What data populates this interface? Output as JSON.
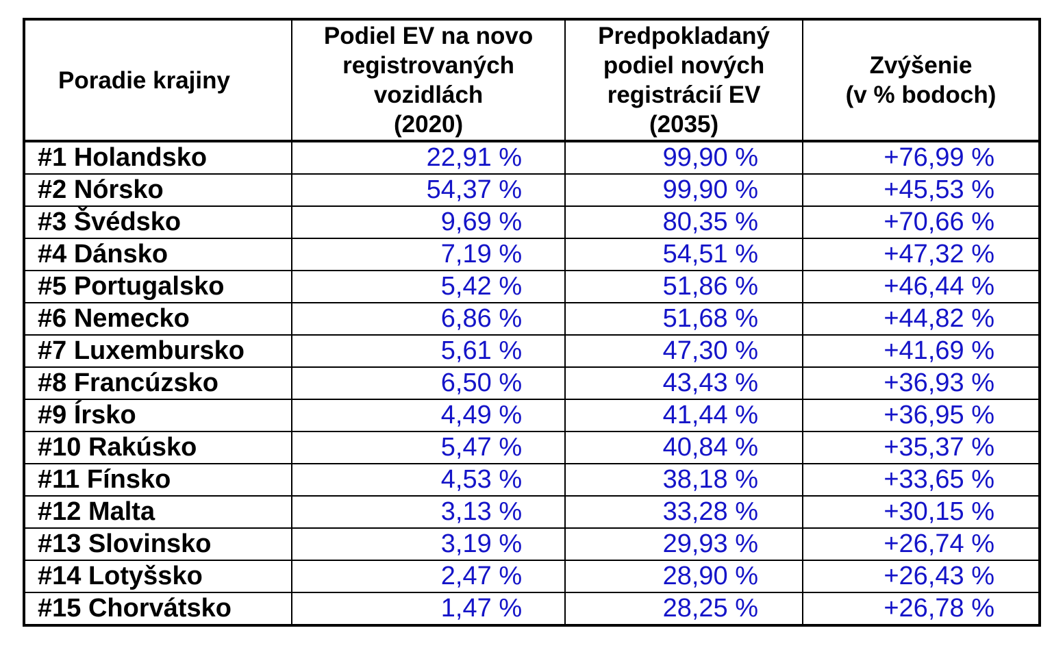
{
  "chart_data": {
    "type": "table",
    "columns": [
      {
        "key": "country",
        "lines": [
          "Poradie krajiny"
        ]
      },
      {
        "key": "share_2020",
        "lines": [
          "Podiel EV na novo",
          "registrovaných",
          "vozidlách",
          "(2020)"
        ]
      },
      {
        "key": "share_2035",
        "lines": [
          "Predpokladaný",
          "podiel nových",
          "registrácií EV",
          "(2035)"
        ]
      },
      {
        "key": "increase",
        "lines": [
          "Zvýšenie",
          "(v % bodoch)"
        ]
      }
    ],
    "rows": [
      {
        "country": "#1 Holandsko",
        "share_2020": "22,91 %",
        "share_2035": "99,90 %",
        "increase": "+76,99 %"
      },
      {
        "country": "#2 Nórsko",
        "share_2020": "54,37 %",
        "share_2035": "99,90 %",
        "increase": "+45,53 %"
      },
      {
        "country": "#3 Švédsko",
        "share_2020": "9,69 %",
        "share_2035": "80,35 %",
        "increase": "+70,66 %"
      },
      {
        "country": "#4 Dánsko",
        "share_2020": "7,19 %",
        "share_2035": "54,51 %",
        "increase": "+47,32 %"
      },
      {
        "country": "#5 Portugalsko",
        "share_2020": "5,42 %",
        "share_2035": "51,86 %",
        "increase": "+46,44 %"
      },
      {
        "country": "#6 Nemecko",
        "share_2020": "6,86 %",
        "share_2035": "51,68 %",
        "increase": "+44,82 %"
      },
      {
        "country": "#7 Luxembursko",
        "share_2020": "5,61 %",
        "share_2035": "47,30 %",
        "increase": "+41,69 %"
      },
      {
        "country": "#8 Francúzsko",
        "share_2020": "6,50 %",
        "share_2035": "43,43 %",
        "increase": "+36,93 %"
      },
      {
        "country": "#9 Írsko",
        "share_2020": "4,49 %",
        "share_2035": "41,44 %",
        "increase": "+36,95 %"
      },
      {
        "country": "#10 Rakúsko",
        "share_2020": "5,47 %",
        "share_2035": "40,84 %",
        "increase": "+35,37 %"
      },
      {
        "country": "#11 Fínsko",
        "share_2020": "4,53 %",
        "share_2035": "38,18 %",
        "increase": "+33,65 %"
      },
      {
        "country": "#12 Malta",
        "share_2020": "3,13 %",
        "share_2035": "33,28 %",
        "increase": "+30,15 %"
      },
      {
        "country": "#13 Slovinsko",
        "share_2020": "3,19 %",
        "share_2035": "29,93 %",
        "increase": "+26,74 %"
      },
      {
        "country": "#14 Lotyšsko",
        "share_2020": "2,47 %",
        "share_2035": "28,90 %",
        "increase": "+26,43 %"
      },
      {
        "country": "#15 Chorvátsko",
        "share_2020": "1,47 %",
        "share_2035": "28,25 %",
        "increase": "+26,78 %"
      }
    ]
  },
  "colors": {
    "text": "#000000",
    "value_text": "#1414c8",
    "border": "#000000",
    "background": "#ffffff"
  }
}
